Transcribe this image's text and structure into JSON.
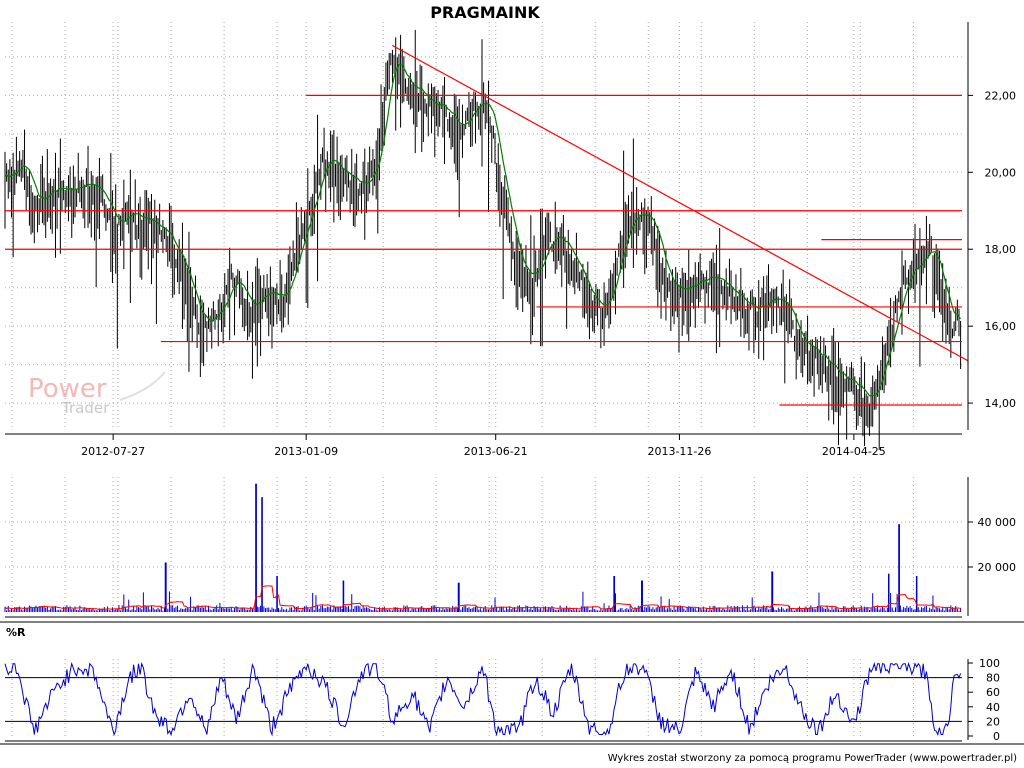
{
  "title": "PRAGMAINK",
  "watermark": {
    "line1": "Power",
    "line2": "Trader"
  },
  "footer": "Wykres został stworzony za pomocą programu PowerTrader (www.powertrader.pl)",
  "colors": {
    "price": "#000000",
    "ma": "#008000",
    "support": "#ff0000",
    "volume": "#0000cc",
    "volume_ma": "#ff0000",
    "williams": "#0000cc",
    "grid": "#aaaaaa"
  },
  "chart_data": [
    {
      "type": "candlestick",
      "name": "price",
      "title": "PRAGMAINK",
      "x_tick_labels": [
        "2012-07-27",
        "2013-01-09",
        "2013-06-21",
        "2013-11-26",
        "2014-04-25"
      ],
      "x_range": [
        "2012-04-25",
        "2014-07-27"
      ],
      "y_tick_labels": [
        "14,00",
        "16,00",
        "18,00",
        "20,00",
        "22,00"
      ],
      "ylim": [
        13.3,
        23.7
      ],
      "grid": true,
      "series": [
        {
          "name": "close",
          "points": [
            [
              "2012-04-25",
              19.9
            ],
            [
              "2012-05-10",
              20.3
            ],
            [
              "2012-05-20",
              19.2
            ],
            [
              "2012-06-05",
              19.6
            ],
            [
              "2012-06-25",
              19.6
            ],
            [
              "2012-07-10",
              19.8
            ],
            [
              "2012-07-27",
              18.7
            ],
            [
              "2012-08-20",
              18.9
            ],
            [
              "2012-09-10",
              18.4
            ],
            [
              "2012-09-25",
              17.5
            ],
            [
              "2012-10-10",
              16.1
            ],
            [
              "2012-10-25",
              16.5
            ],
            [
              "2012-11-05",
              17.3
            ],
            [
              "2012-11-20",
              16.6
            ],
            [
              "2012-12-05",
              16.9
            ],
            [
              "2012-12-20",
              16.6
            ],
            [
              "2013-01-01",
              18.0
            ],
            [
              "2013-01-15",
              19.4
            ],
            [
              "2013-01-25",
              20.5
            ],
            [
              "2013-02-10",
              20.0
            ],
            [
              "2013-02-25",
              19.6
            ],
            [
              "2013-03-10",
              20.4
            ],
            [
              "2013-03-22",
              23.2
            ],
            [
              "2013-04-05",
              22.3
            ],
            [
              "2013-04-20",
              21.9
            ],
            [
              "2013-05-05",
              21.7
            ],
            [
              "2013-05-20",
              21.1
            ],
            [
              "2013-06-05",
              21.9
            ],
            [
              "2013-06-15",
              21.6
            ],
            [
              "2013-06-27",
              19.4
            ],
            [
              "2013-07-10",
              17.6
            ],
            [
              "2013-07-20",
              17.3
            ],
            [
              "2013-08-05",
              18.3
            ],
            [
              "2013-08-20",
              18.1
            ],
            [
              "2013-09-05",
              17.1
            ],
            [
              "2013-09-20",
              16.4
            ],
            [
              "2013-10-01",
              17.6
            ],
            [
              "2013-10-15",
              18.9
            ],
            [
              "2013-10-30",
              18.9
            ],
            [
              "2013-11-15",
              17.2
            ],
            [
              "2013-11-30",
              16.9
            ],
            [
              "2013-12-15",
              17.2
            ],
            [
              "2013-12-30",
              17.3
            ],
            [
              "2014-01-15",
              16.7
            ],
            [
              "2014-01-30",
              16.5
            ],
            [
              "2014-02-15",
              16.9
            ],
            [
              "2014-02-28",
              16.3
            ],
            [
              "2014-03-10",
              15.5
            ],
            [
              "2014-03-25",
              15.3
            ],
            [
              "2014-04-10",
              14.7
            ],
            [
              "2014-04-25",
              14.4
            ],
            [
              "2014-05-08",
              14.1
            ],
            [
              "2014-05-22",
              15.5
            ],
            [
              "2014-06-05",
              17.1
            ],
            [
              "2014-06-18",
              17.7
            ],
            [
              "2014-06-30",
              18.1
            ],
            [
              "2014-07-10",
              16.6
            ],
            [
              "2014-07-20",
              16.0
            ],
            [
              "2014-07-27",
              16.4
            ]
          ]
        }
      ],
      "horizontal_lines": [
        {
          "y": 22.0,
          "from": "2013-01-09",
          "to": "2014-07-27"
        },
        {
          "y": 19.0,
          "from": "2012-04-25",
          "to": "2014-07-27"
        },
        {
          "y": 18.0,
          "from": "2012-04-25",
          "to": "2014-07-27"
        },
        {
          "y": 18.25,
          "from": "2014-03-28",
          "to": "2014-07-27"
        },
        {
          "y": 16.5,
          "from": "2013-07-26",
          "to": "2014-07-27"
        },
        {
          "y": 15.6,
          "from": "2012-09-06",
          "to": "2014-07-27"
        },
        {
          "y": 13.95,
          "from": "2014-02-20",
          "to": "2014-07-27"
        }
      ],
      "trend_lines": [
        {
          "from": [
            "2013-03-24",
            23.3
          ],
          "to": [
            "2014-07-27",
            15.1
          ]
        }
      ]
    },
    {
      "type": "bar",
      "name": "volume",
      "y_tick_labels": [
        "20 000",
        "40 000"
      ],
      "ylim": [
        0,
        60000
      ],
      "grid": true,
      "spikes": [
        [
          "2012-11-27",
          57000
        ],
        [
          "2012-12-02",
          51000
        ],
        [
          "2014-06-03",
          39000
        ],
        [
          "2012-09-10",
          22000
        ],
        [
          "2014-02-14",
          18000
        ],
        [
          "2014-06-18",
          16000
        ],
        [
          "2013-10-25",
          14000
        ],
        [
          "2013-10-01",
          16000
        ],
        [
          "2013-05-20",
          13000
        ],
        [
          "2013-02-10",
          14000
        ],
        [
          "2012-12-15",
          16000
        ],
        [
          "2014-05-25",
          17000
        ]
      ]
    },
    {
      "type": "line",
      "name": "%R",
      "title": "%R",
      "y_tick_labels": [
        "0",
        "20",
        "40",
        "60",
        "80",
        "100"
      ],
      "ylim": [
        0,
        100
      ],
      "reference_lines": [
        20,
        80
      ],
      "series": [
        {
          "name": "%R",
          "points": [
            [
              "2012-04-25",
              90
            ],
            [
              "2012-05-05",
              96
            ],
            [
              "2012-05-15",
              35
            ],
            [
              "2012-05-20",
              5
            ],
            [
              "2012-05-30",
              40
            ],
            [
              "2012-06-10",
              70
            ],
            [
              "2012-06-25",
              95
            ],
            [
              "2012-07-10",
              90
            ],
            [
              "2012-07-20",
              40
            ],
            [
              "2012-07-27",
              5
            ],
            [
              "2012-08-10",
              80
            ],
            [
              "2012-08-20",
              95
            ],
            [
              "2012-09-01",
              30
            ],
            [
              "2012-09-15",
              8
            ],
            [
              "2012-10-01",
              60
            ],
            [
              "2012-10-15",
              3
            ],
            [
              "2012-10-28",
              80
            ],
            [
              "2012-11-10",
              20
            ],
            [
              "2012-11-25",
              95
            ],
            [
              "2012-12-10",
              10
            ],
            [
              "2012-12-25",
              60
            ],
            [
              "2013-01-09",
              98
            ],
            [
              "2013-01-25",
              70
            ],
            [
              "2013-02-10",
              15
            ],
            [
              "2013-02-25",
              85
            ],
            [
              "2013-03-10",
              98
            ],
            [
              "2013-03-25",
              20
            ],
            [
              "2013-04-10",
              60
            ],
            [
              "2013-04-25",
              5
            ],
            [
              "2013-05-10",
              80
            ],
            [
              "2013-05-25",
              40
            ],
            [
              "2013-06-10",
              95
            ],
            [
              "2013-06-21",
              10
            ],
            [
              "2013-07-10",
              5
            ],
            [
              "2013-07-25",
              80
            ],
            [
              "2013-08-10",
              30
            ],
            [
              "2013-08-25",
              95
            ],
            [
              "2013-09-10",
              10
            ],
            [
              "2013-09-25",
              4
            ],
            [
              "2013-10-10",
              90
            ],
            [
              "2013-10-25",
              97
            ],
            [
              "2013-11-10",
              20
            ],
            [
              "2013-11-26",
              5
            ],
            [
              "2013-12-10",
              85
            ],
            [
              "2013-12-25",
              40
            ],
            [
              "2014-01-10",
              90
            ],
            [
              "2014-01-25",
              10
            ],
            [
              "2014-02-10",
              70
            ],
            [
              "2014-02-25",
              95
            ],
            [
              "2014-03-10",
              40
            ],
            [
              "2014-03-25",
              5
            ],
            [
              "2014-04-10",
              60
            ],
            [
              "2014-04-25",
              15
            ],
            [
              "2014-05-10",
              95
            ],
            [
              "2014-05-25",
              98
            ],
            [
              "2014-06-10",
              95
            ],
            [
              "2014-06-25",
              90
            ],
            [
              "2014-07-05",
              3
            ],
            [
              "2014-07-15",
              8
            ],
            [
              "2014-07-20",
              95
            ],
            [
              "2014-07-27",
              80
            ]
          ]
        }
      ]
    }
  ]
}
